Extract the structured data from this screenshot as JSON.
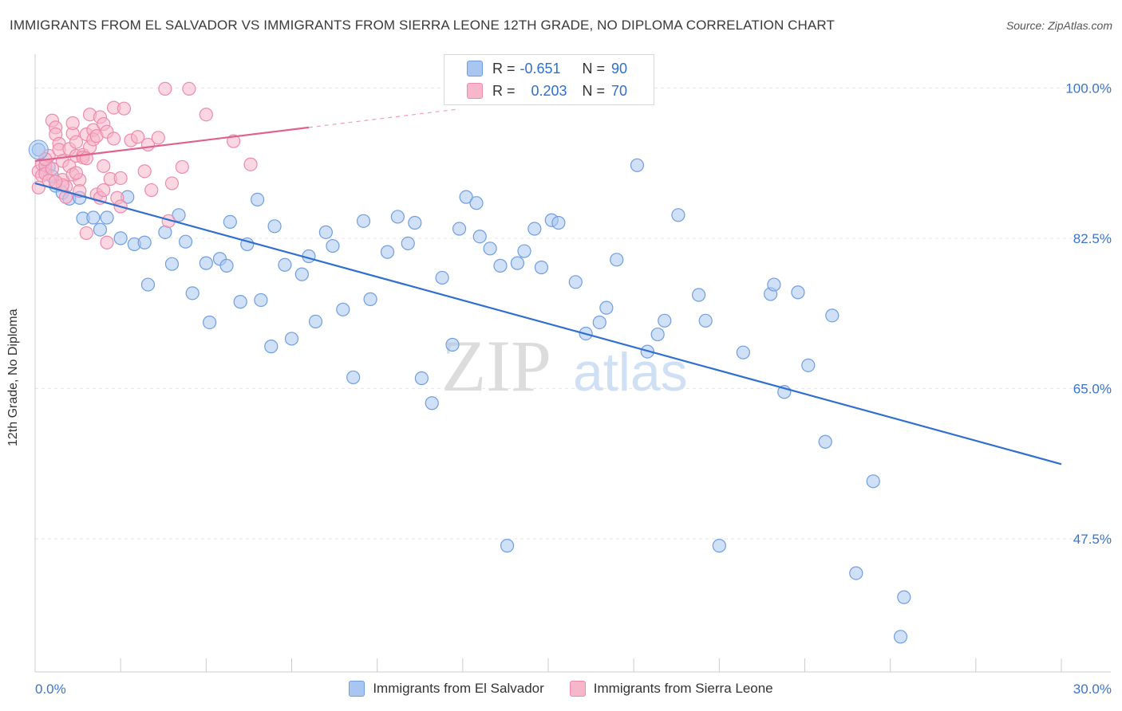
{
  "header": {
    "title": "IMMIGRANTS FROM EL SALVADOR VS IMMIGRANTS FROM SIERRA LEONE 12TH GRADE, NO DIPLOMA CORRELATION CHART",
    "source": "Source: ZipAtlas.com"
  },
  "watermark": {
    "zip": "ZIP",
    "atlas": "atlas"
  },
  "stats": [
    {
      "r_label": "R =",
      "r_value": "-0.651",
      "n_label": "N =",
      "n_value": "90",
      "color": "#a9c6f0",
      "border": "#6f9ee0"
    },
    {
      "r_label": "R =",
      "r_value": "0.203",
      "n_label": "N =",
      "n_value": "70",
      "color": "#f7b7cb",
      "border": "#ee8aab"
    }
  ],
  "legend": [
    {
      "label": "Immigrants from El Salvador",
      "color": "#a9c6f0",
      "border": "#6f9ee0"
    },
    {
      "label": "Immigrants from Sierra Leone",
      "color": "#f7b7cb",
      "border": "#ee8aab"
    }
  ],
  "chart_data": {
    "type": "scatter",
    "title": "IMMIGRANTS FROM EL SALVADOR VS IMMIGRANTS FROM SIERRA LEONE 12TH GRADE, NO DIPLOMA CORRELATION CHART",
    "xlabel": "",
    "ylabel": "12th Grade, No Diploma",
    "xlim": [
      0,
      30
    ],
    "ylim": [
      32,
      103
    ],
    "x_tick_labels": [
      "0.0%",
      "30.0%"
    ],
    "y_ticks": [
      100.0,
      82.5,
      65.0,
      47.5
    ],
    "y_tick_labels": [
      "100.0%",
      "82.5%",
      "65.0%",
      "47.5%"
    ],
    "grid": true,
    "legend_position": "bottom",
    "series": [
      {
        "name": "Immigrants from El Salvador",
        "color": "#6f9ee0",
        "fill": "#a9c6f0",
        "trend": {
          "x": [
            0,
            30
          ],
          "y": [
            88.9,
            56.2
          ],
          "color": "#2f6fd0"
        },
        "points": [
          [
            0.1,
            92.8
          ],
          [
            0.3,
            90.5
          ],
          [
            0.4,
            90.8
          ],
          [
            0.6,
            88.6
          ],
          [
            0.8,
            87.8
          ],
          [
            1.0,
            87.1
          ],
          [
            1.3,
            87.2
          ],
          [
            1.4,
            84.8
          ],
          [
            1.7,
            84.9
          ],
          [
            1.9,
            83.5
          ],
          [
            2.1,
            84.9
          ],
          [
            2.5,
            82.5
          ],
          [
            2.7,
            87.3
          ],
          [
            2.9,
            81.8
          ],
          [
            3.2,
            82.0
          ],
          [
            3.3,
            77.1
          ],
          [
            3.8,
            83.2
          ],
          [
            4.0,
            79.5
          ],
          [
            4.2,
            85.2
          ],
          [
            4.4,
            82.1
          ],
          [
            4.6,
            76.1
          ],
          [
            5.0,
            79.6
          ],
          [
            5.1,
            72.7
          ],
          [
            5.4,
            80.1
          ],
          [
            5.6,
            79.3
          ],
          [
            5.7,
            84.4
          ],
          [
            6.0,
            75.1
          ],
          [
            6.2,
            81.8
          ],
          [
            6.5,
            87.0
          ],
          [
            6.6,
            75.3
          ],
          [
            6.9,
            69.9
          ],
          [
            7.0,
            83.9
          ],
          [
            7.3,
            79.4
          ],
          [
            7.5,
            70.8
          ],
          [
            7.8,
            78.3
          ],
          [
            8.0,
            80.4
          ],
          [
            8.2,
            72.8
          ],
          [
            8.5,
            83.2
          ],
          [
            8.7,
            81.6
          ],
          [
            9.0,
            74.2
          ],
          [
            9.3,
            66.3
          ],
          [
            9.6,
            84.5
          ],
          [
            9.8,
            75.4
          ],
          [
            10.3,
            80.9
          ],
          [
            10.6,
            85.0
          ],
          [
            10.9,
            81.9
          ],
          [
            11.1,
            84.3
          ],
          [
            11.3,
            66.2
          ],
          [
            11.6,
            63.3
          ],
          [
            11.9,
            77.9
          ],
          [
            12.2,
            70.1
          ],
          [
            12.4,
            83.6
          ],
          [
            12.6,
            87.3
          ],
          [
            12.9,
            86.6
          ],
          [
            13.0,
            82.7
          ],
          [
            13.3,
            81.3
          ],
          [
            13.6,
            79.3
          ],
          [
            13.8,
            46.7
          ],
          [
            14.1,
            79.6
          ],
          [
            14.3,
            81.0
          ],
          [
            14.6,
            83.6
          ],
          [
            14.8,
            79.1
          ],
          [
            15.1,
            84.6
          ],
          [
            15.3,
            84.3
          ],
          [
            15.8,
            77.4
          ],
          [
            16.1,
            71.4
          ],
          [
            16.5,
            72.7
          ],
          [
            16.7,
            74.4
          ],
          [
            17.0,
            80.0
          ],
          [
            17.6,
            91.0
          ],
          [
            17.9,
            69.3
          ],
          [
            18.2,
            71.3
          ],
          [
            18.4,
            72.9
          ],
          [
            18.8,
            85.2
          ],
          [
            19.4,
            75.9
          ],
          [
            19.6,
            72.9
          ],
          [
            20.0,
            46.7
          ],
          [
            20.7,
            69.2
          ],
          [
            21.5,
            76.0
          ],
          [
            21.6,
            77.1
          ],
          [
            21.9,
            64.6
          ],
          [
            22.3,
            76.2
          ],
          [
            22.6,
            67.7
          ],
          [
            23.1,
            58.8
          ],
          [
            23.3,
            73.5
          ],
          [
            24.0,
            43.5
          ],
          [
            24.5,
            54.2
          ],
          [
            25.3,
            36.1
          ],
          [
            25.4,
            40.7
          ],
          [
            0.5,
            89.7
          ]
        ]
      },
      {
        "name": "Immigrants from Sierra Leone",
        "color": "#ee8aab",
        "fill": "#f7b7cb",
        "trend": {
          "x": [
            0,
            8.0
          ],
          "y": [
            91.5,
            95.4
          ],
          "color": "#e0608e",
          "dash_to": [
            12.3,
            97.5
          ]
        },
        "points": [
          [
            0.1,
            88.4
          ],
          [
            0.1,
            90.3
          ],
          [
            0.2,
            91.1
          ],
          [
            0.2,
            89.8
          ],
          [
            0.3,
            91.0
          ],
          [
            0.3,
            90.0
          ],
          [
            0.4,
            89.2
          ],
          [
            0.4,
            92.1
          ],
          [
            0.5,
            90.6
          ],
          [
            0.5,
            96.2
          ],
          [
            0.6,
            95.4
          ],
          [
            0.6,
            94.6
          ],
          [
            0.7,
            93.5
          ],
          [
            0.7,
            92.8
          ],
          [
            0.8,
            91.5
          ],
          [
            0.8,
            89.3
          ],
          [
            0.9,
            88.5
          ],
          [
            0.9,
            87.3
          ],
          [
            1.0,
            92.9
          ],
          [
            1.0,
            90.9
          ],
          [
            1.1,
            89.9
          ],
          [
            1.1,
            94.7
          ],
          [
            1.1,
            95.9
          ],
          [
            1.2,
            93.7
          ],
          [
            1.2,
            92.1
          ],
          [
            1.3,
            89.3
          ],
          [
            1.3,
            88.0
          ],
          [
            1.4,
            92.2
          ],
          [
            1.4,
            91.9
          ],
          [
            1.5,
            83.1
          ],
          [
            1.5,
            94.6
          ],
          [
            1.6,
            96.9
          ],
          [
            1.6,
            93.1
          ],
          [
            1.7,
            95.1
          ],
          [
            1.7,
            94.0
          ],
          [
            1.8,
            94.4
          ],
          [
            1.8,
            87.6
          ],
          [
            1.9,
            87.2
          ],
          [
            1.9,
            96.6
          ],
          [
            2.0,
            88.1
          ],
          [
            2.0,
            90.9
          ],
          [
            2.0,
            95.8
          ],
          [
            2.1,
            82.0
          ],
          [
            2.1,
            94.9
          ],
          [
            2.2,
            89.4
          ],
          [
            2.3,
            94.1
          ],
          [
            2.3,
            97.7
          ],
          [
            2.4,
            87.2
          ],
          [
            2.5,
            86.2
          ],
          [
            2.5,
            89.5
          ],
          [
            2.6,
            97.6
          ],
          [
            2.8,
            93.9
          ],
          [
            3.0,
            94.3
          ],
          [
            3.2,
            90.3
          ],
          [
            3.3,
            93.4
          ],
          [
            3.4,
            88.1
          ],
          [
            3.6,
            94.2
          ],
          [
            3.8,
            99.9
          ],
          [
            3.9,
            84.5
          ],
          [
            4.0,
            88.9
          ],
          [
            4.3,
            90.8
          ],
          [
            4.5,
            99.9
          ],
          [
            5.0,
            96.9
          ],
          [
            5.8,
            93.8
          ],
          [
            6.3,
            91.1
          ],
          [
            0.3,
            91.7
          ],
          [
            0.8,
            88.7
          ],
          [
            1.2,
            90.1
          ],
          [
            1.5,
            91.8
          ],
          [
            0.6,
            89.1
          ]
        ]
      }
    ]
  }
}
